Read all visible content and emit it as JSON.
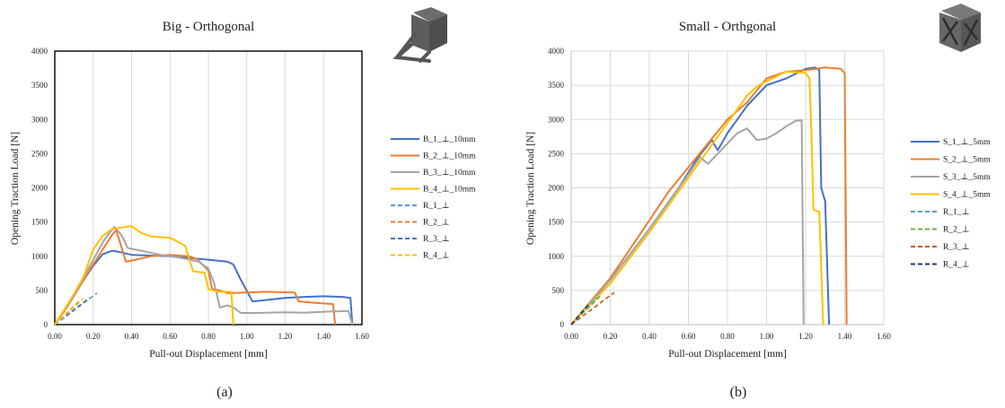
{
  "captions": [
    "(a)",
    "(b)"
  ],
  "chart_data": [
    {
      "type": "line",
      "title": "Big - Orthogonal",
      "xlabel": "Pull-out Displacement [mm]",
      "ylabel": "Opening Traction Load [N]",
      "xlim": [
        0,
        1.6
      ],
      "ylim": [
        0,
        4000
      ],
      "xticks": [
        "0.00",
        "0.20",
        "0.40",
        "0.60",
        "0.80",
        "1.00",
        "1.20",
        "1.40",
        "1.60"
      ],
      "yticks": [
        "0",
        "500",
        "1000",
        "1500",
        "2000",
        "2500",
        "3000",
        "3500",
        "4000"
      ],
      "grid": "vertical",
      "legend": "right",
      "series": [
        {
          "name": "B_1_⊥_10mm",
          "color": "#4472C4",
          "dash": false,
          "points": [
            [
              0,
              0
            ],
            [
              0.05,
              200
            ],
            [
              0.1,
              420
            ],
            [
              0.15,
              650
            ],
            [
              0.2,
              860
            ],
            [
              0.25,
              1030
            ],
            [
              0.3,
              1080
            ],
            [
              0.34,
              1060
            ],
            [
              0.4,
              1020
            ],
            [
              0.6,
              1000
            ],
            [
              0.8,
              950
            ],
            [
              0.9,
              920
            ],
            [
              0.93,
              880
            ],
            [
              0.97,
              650
            ],
            [
              1.03,
              340
            ],
            [
              1.1,
              360
            ],
            [
              1.2,
              390
            ],
            [
              1.3,
              405
            ],
            [
              1.4,
              415
            ],
            [
              1.5,
              405
            ],
            [
              1.54,
              390
            ],
            [
              1.55,
              0
            ]
          ]
        },
        {
          "name": "B_2_⊥_10mm",
          "color": "#ED7D31",
          "dash": false,
          "points": [
            [
              0,
              0
            ],
            [
              0.05,
              200
            ],
            [
              0.1,
              420
            ],
            [
              0.15,
              650
            ],
            [
              0.2,
              880
            ],
            [
              0.25,
              1100
            ],
            [
              0.3,
              1320
            ],
            [
              0.32,
              1380
            ],
            [
              0.34,
              1200
            ],
            [
              0.37,
              920
            ],
            [
              0.42,
              950
            ],
            [
              0.5,
              1000
            ],
            [
              0.6,
              1020
            ],
            [
              0.7,
              1000
            ],
            [
              0.74,
              960
            ],
            [
              0.8,
              790
            ],
            [
              0.82,
              520
            ],
            [
              0.86,
              500
            ],
            [
              0.88,
              480
            ],
            [
              0.9,
              460
            ],
            [
              1.0,
              470
            ],
            [
              1.1,
              480
            ],
            [
              1.25,
              470
            ],
            [
              1.27,
              340
            ],
            [
              1.35,
              320
            ],
            [
              1.45,
              300
            ],
            [
              1.46,
              0
            ]
          ]
        },
        {
          "name": "B_3_⊥_10mm",
          "color": "#A5A5A5",
          "dash": false,
          "points": [
            [
              0,
              0
            ],
            [
              0.05,
              210
            ],
            [
              0.1,
              430
            ],
            [
              0.15,
              680
            ],
            [
              0.2,
              950
            ],
            [
              0.26,
              1250
            ],
            [
              0.31,
              1430
            ],
            [
              0.35,
              1300
            ],
            [
              0.38,
              1120
            ],
            [
              0.45,
              1080
            ],
            [
              0.55,
              1020
            ],
            [
              0.65,
              980
            ],
            [
              0.75,
              920
            ],
            [
              0.8,
              820
            ],
            [
              0.83,
              610
            ],
            [
              0.86,
              250
            ],
            [
              0.9,
              280
            ],
            [
              0.93,
              250
            ],
            [
              0.97,
              170
            ],
            [
              1.05,
              170
            ],
            [
              1.2,
              180
            ],
            [
              1.3,
              175
            ],
            [
              1.42,
              190
            ],
            [
              1.53,
              200
            ],
            [
              1.55,
              0
            ]
          ]
        },
        {
          "name": "B_4_⊥_10mm",
          "color": "#FFC000",
          "dash": false,
          "points": [
            [
              0,
              0
            ],
            [
              0.05,
              220
            ],
            [
              0.1,
              450
            ],
            [
              0.15,
              700
            ],
            [
              0.2,
              1100
            ],
            [
              0.25,
              1300
            ],
            [
              0.3,
              1400
            ],
            [
              0.35,
              1420
            ],
            [
              0.4,
              1440
            ],
            [
              0.45,
              1340
            ],
            [
              0.5,
              1290
            ],
            [
              0.6,
              1270
            ],
            [
              0.65,
              1200
            ],
            [
              0.68,
              1150
            ],
            [
              0.72,
              780
            ],
            [
              0.78,
              760
            ],
            [
              0.8,
              520
            ],
            [
              0.85,
              480
            ],
            [
              0.92,
              480
            ],
            [
              0.93,
              0
            ]
          ]
        },
        {
          "name": "R_1_⊥",
          "color": "#5B9BD5",
          "dash": true,
          "points": [
            [
              0,
              0
            ],
            [
              0.22,
              460
            ]
          ]
        },
        {
          "name": "R_2_⊥",
          "color": "#ED7D31",
          "dash": true,
          "points": [
            [
              0,
              0
            ],
            [
              0.13,
              350
            ]
          ]
        },
        {
          "name": "R_3_⊥",
          "color": "#4472C4",
          "dash": true,
          "points": [
            [
              0,
              0
            ],
            [
              0.18,
              390
            ]
          ]
        },
        {
          "name": "R_4_⊥",
          "color": "#FFC000",
          "dash": true,
          "points": [
            [
              0,
              0
            ],
            [
              0.15,
              380
            ]
          ]
        }
      ]
    },
    {
      "type": "line",
      "title": "Small - Orthgonal",
      "xlabel": "Pull-out Displacement [mm]",
      "ylabel": "Opening Traction Load [N]",
      "xlim": [
        0,
        1.6
      ],
      "ylim": [
        0,
        4000
      ],
      "xticks": [
        "0.00",
        "0.20",
        "0.40",
        "0.60",
        "0.80",
        "1.00",
        "1.20",
        "1.40",
        "1.60"
      ],
      "yticks": [
        "0",
        "500",
        "1000",
        "1500",
        "2000",
        "2500",
        "3000",
        "3500",
        "4000"
      ],
      "grid": "both",
      "legend": "right",
      "series": [
        {
          "name": "S_1_⊥_5mm",
          "color": "#4472C4",
          "dash": false,
          "points": [
            [
              0,
              0
            ],
            [
              0.2,
              650
            ],
            [
              0.4,
              1400
            ],
            [
              0.55,
              2000
            ],
            [
              0.65,
              2450
            ],
            [
              0.72,
              2700
            ],
            [
              0.75,
              2550
            ],
            [
              0.8,
              2800
            ],
            [
              0.9,
              3200
            ],
            [
              1.0,
              3500
            ],
            [
              1.1,
              3600
            ],
            [
              1.2,
              3740
            ],
            [
              1.25,
              3760
            ],
            [
              1.27,
              3720
            ],
            [
              1.28,
              2000
            ],
            [
              1.3,
              1800
            ],
            [
              1.32,
              0
            ]
          ]
        },
        {
          "name": "S_2_⊥_5mm",
          "color": "#ED7D31",
          "dash": false,
          "points": [
            [
              0,
              0
            ],
            [
              0.2,
              680
            ],
            [
              0.3,
              1100
            ],
            [
              0.5,
              1950
            ],
            [
              0.6,
              2300
            ],
            [
              0.7,
              2650
            ],
            [
              0.8,
              3000
            ],
            [
              0.9,
              3250
            ],
            [
              1.0,
              3600
            ],
            [
              1.1,
              3700
            ],
            [
              1.2,
              3720
            ],
            [
              1.3,
              3760
            ],
            [
              1.38,
              3740
            ],
            [
              1.4,
              3680
            ],
            [
              1.41,
              0
            ]
          ]
        },
        {
          "name": "S_3_⊥_5mm",
          "color": "#A5A5A5",
          "dash": false,
          "points": [
            [
              0,
              0
            ],
            [
              0.2,
              650
            ],
            [
              0.4,
              1400
            ],
            [
              0.6,
              2200
            ],
            [
              0.66,
              2450
            ],
            [
              0.7,
              2350
            ],
            [
              0.75,
              2500
            ],
            [
              0.8,
              2650
            ],
            [
              0.85,
              2800
            ],
            [
              0.9,
              2870
            ],
            [
              0.95,
              2700
            ],
            [
              1.0,
              2720
            ],
            [
              1.05,
              2800
            ],
            [
              1.1,
              2900
            ],
            [
              1.15,
              2980
            ],
            [
              1.18,
              2990
            ],
            [
              1.19,
              0
            ]
          ]
        },
        {
          "name": "S_4_⊥_5mm",
          "color": "#FFC000",
          "dash": false,
          "points": [
            [
              0,
              0
            ],
            [
              0.2,
              600
            ],
            [
              0.4,
              1350
            ],
            [
              0.6,
              2150
            ],
            [
              0.8,
              2950
            ],
            [
              0.9,
              3350
            ],
            [
              0.95,
              3480
            ],
            [
              1.0,
              3560
            ],
            [
              1.1,
              3700
            ],
            [
              1.2,
              3680
            ],
            [
              1.22,
              3600
            ],
            [
              1.23,
              2800
            ],
            [
              1.24,
              1680
            ],
            [
              1.27,
              1650
            ],
            [
              1.29,
              0
            ]
          ]
        },
        {
          "name": "R_1_⊥",
          "color": "#5B9BD5",
          "dash": true,
          "points": [
            [
              0,
              0
            ],
            [
              0.13,
              390
            ]
          ]
        },
        {
          "name": "R_2_⊥",
          "color": "#70AD47",
          "dash": true,
          "points": [
            [
              0,
              0
            ],
            [
              0.15,
              420
            ]
          ]
        },
        {
          "name": "R_3_⊥",
          "color": "#C55A11",
          "dash": true,
          "points": [
            [
              0,
              0
            ],
            [
              0.22,
              470
            ]
          ]
        },
        {
          "name": "R_4_⊥",
          "color": "#1F3864",
          "dash": true,
          "points": [
            [
              0,
              0
            ],
            [
              0.09,
              300
            ]
          ]
        }
      ]
    }
  ]
}
